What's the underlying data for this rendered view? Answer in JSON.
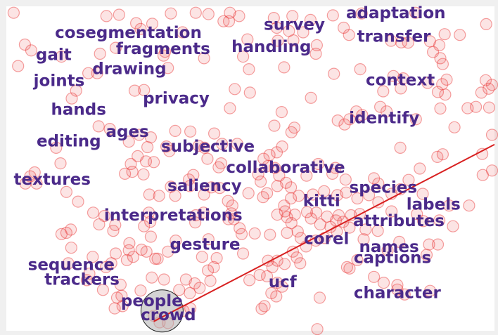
{
  "chart_data": {
    "type": "scatter",
    "title": "",
    "xlabel": "",
    "ylabel": "",
    "grid": false,
    "legend": "none",
    "xlim": [
      0,
      100
    ],
    "ylim": [
      0,
      100
    ],
    "colors": {
      "background": "#f0f0f0",
      "plot": "#ffffff",
      "points": "#e83030",
      "words": "#4b2a8a",
      "line": "#d82020",
      "highlight": "#b0b0b0"
    },
    "words": [
      {
        "text": "adaptation",
        "x": 79.8,
        "y": 97.8
      },
      {
        "text": "survey",
        "x": 59.0,
        "y": 94.3
      },
      {
        "text": "cosegmentation",
        "x": 25.0,
        "y": 91.8
      },
      {
        "text": "transfer",
        "x": 79.4,
        "y": 90.6
      },
      {
        "text": "fragments",
        "x": 32.1,
        "y": 86.8
      },
      {
        "text": "handling",
        "x": 54.3,
        "y": 87.4
      },
      {
        "text": "gait",
        "x": 9.7,
        "y": 85.0
      },
      {
        "text": "drawing",
        "x": 25.2,
        "y": 80.6
      },
      {
        "text": "joints",
        "x": 10.8,
        "y": 77.0
      },
      {
        "text": "context",
        "x": 80.7,
        "y": 77.2
      },
      {
        "text": "privacy",
        "x": 34.8,
        "y": 71.5
      },
      {
        "text": "hands",
        "x": 14.8,
        "y": 68.1
      },
      {
        "text": "identify",
        "x": 77.4,
        "y": 65.5
      },
      {
        "text": "ages",
        "x": 24.8,
        "y": 61.3
      },
      {
        "text": "editing",
        "x": 12.8,
        "y": 58.3
      },
      {
        "text": "subjective",
        "x": 41.3,
        "y": 56.7
      },
      {
        "text": "collaborative",
        "x": 57.2,
        "y": 50.2
      },
      {
        "text": "textures",
        "x": 9.4,
        "y": 46.5
      },
      {
        "text": "saliency",
        "x": 40.6,
        "y": 44.6
      },
      {
        "text": "species",
        "x": 77.2,
        "y": 44.1
      },
      {
        "text": "kitti",
        "x": 64.6,
        "y": 39.9
      },
      {
        "text": "labels",
        "x": 87.5,
        "y": 38.8
      },
      {
        "text": "interpretations",
        "x": 34.2,
        "y": 35.5
      },
      {
        "text": "attributes",
        "x": 80.4,
        "y": 33.8
      },
      {
        "text": "gesture",
        "x": 40.7,
        "y": 26.5
      },
      {
        "text": "corel",
        "x": 65.6,
        "y": 28.3
      },
      {
        "text": "names",
        "x": 78.4,
        "y": 25.8
      },
      {
        "text": "captions",
        "x": 79.1,
        "y": 22.4
      },
      {
        "text": "sequence",
        "x": 13.3,
        "y": 20.2
      },
      {
        "text": "trackers",
        "x": 15.5,
        "y": 15.7
      },
      {
        "text": "ucf",
        "x": 56.6,
        "y": 14.9
      },
      {
        "text": "character",
        "x": 80.1,
        "y": 11.6
      },
      {
        "text": "people",
        "x": 29.8,
        "y": 9.1
      },
      {
        "text": "crowd",
        "x": 33.2,
        "y": 4.8
      }
    ],
    "line": {
      "x": [
        30.2,
        100
      ],
      "y": [
        2.9,
        57.4
      ]
    },
    "highlight_circle": {
      "x": 31.9,
      "y": 6.1
    },
    "points": [
      [
        1.5,
        98
      ],
      [
        20.5,
        97
      ],
      [
        23.1,
        97.4
      ],
      [
        33.7,
        97.8
      ],
      [
        38.8,
        98
      ],
      [
        41.4,
        97.6
      ],
      [
        45.8,
        98
      ],
      [
        47.7,
        97
      ],
      [
        58.6,
        97
      ],
      [
        66.9,
        97.2
      ],
      [
        72.8,
        97.8
      ],
      [
        83.8,
        98
      ],
      [
        98.3,
        94.5
      ],
      [
        26.6,
        94.8
      ],
      [
        27.5,
        93
      ],
      [
        29.9,
        94.6
      ],
      [
        36.1,
        92
      ],
      [
        44.5,
        95.4
      ],
      [
        45.6,
        95.4
      ],
      [
        54.8,
        96.4
      ],
      [
        55.4,
        93.4
      ],
      [
        57.9,
        92.4
      ],
      [
        60.8,
        92
      ],
      [
        62.3,
        95.8
      ],
      [
        69.1,
        93.4
      ],
      [
        70.2,
        91.2
      ],
      [
        3.8,
        88.2
      ],
      [
        22.4,
        87.2
      ],
      [
        32.5,
        86
      ],
      [
        49.4,
        89.8
      ],
      [
        55.6,
        89.4
      ],
      [
        58.8,
        89.5
      ],
      [
        63.6,
        88
      ],
      [
        78.8,
        89.4
      ],
      [
        80.9,
        88.9
      ],
      [
        86.8,
        89.2
      ],
      [
        88.7,
        88
      ],
      [
        89.8,
        91.4
      ],
      [
        92.9,
        91.2
      ],
      [
        5.1,
        86.4
      ],
      [
        11.3,
        84.5
      ],
      [
        19.2,
        85.4
      ],
      [
        32.2,
        84.8
      ],
      [
        40.5,
        84
      ],
      [
        48.5,
        84.5
      ],
      [
        63.4,
        85.4
      ],
      [
        82.3,
        88.8
      ],
      [
        87.4,
        85.9
      ],
      [
        88.9,
        84
      ],
      [
        89.4,
        82.2
      ],
      [
        2.4,
        81.6
      ],
      [
        16.8,
        79.4
      ],
      [
        18.6,
        79.4
      ],
      [
        33.1,
        81
      ],
      [
        49.7,
        80.6
      ],
      [
        56.9,
        81.2
      ],
      [
        67.1,
        79.2
      ],
      [
        72.5,
        80.6
      ],
      [
        79.3,
        78.5
      ],
      [
        81.3,
        77.8
      ],
      [
        86.3,
        76.4
      ],
      [
        89.3,
        76
      ],
      [
        90.2,
        77.4
      ],
      [
        98.2,
        77.2
      ],
      [
        99.5,
        75.8
      ],
      [
        14.3,
        74
      ],
      [
        26.3,
        74
      ],
      [
        28.2,
        74.2
      ],
      [
        46.8,
        74.5
      ],
      [
        49.9,
        73.4
      ],
      [
        62.4,
        71.8
      ],
      [
        77.2,
        73.8
      ],
      [
        80.8,
        74.7
      ],
      [
        88.4,
        73.6
      ],
      [
        89.9,
        72.8
      ],
      [
        97.3,
        73.4
      ],
      [
        98.8,
        74.6
      ],
      [
        13.4,
        71.6
      ],
      [
        45.8,
        68.6
      ],
      [
        56.4,
        67.4
      ],
      [
        70.3,
        65.2
      ],
      [
        71.7,
        67.6
      ],
      [
        72.9,
        66.5
      ],
      [
        76.6,
        69
      ],
      [
        77.9,
        67.6
      ],
      [
        83.9,
        65.2
      ],
      [
        88.9,
        68.5
      ],
      [
        94.5,
        68.6
      ],
      [
        96.2,
        69
      ],
      [
        98.9,
        68.8
      ],
      [
        18.9,
        63
      ],
      [
        21.2,
        62.2
      ],
      [
        27.2,
        60.4
      ],
      [
        29.6,
        59.6
      ],
      [
        34.6,
        61.6
      ],
      [
        37.7,
        61.4
      ],
      [
        42.6,
        60.8
      ],
      [
        54.9,
        63.2
      ],
      [
        58.4,
        61.2
      ],
      [
        59,
        62.6
      ],
      [
        67.9,
        64.8
      ],
      [
        69.3,
        63.6
      ],
      [
        91.8,
        62.7
      ],
      [
        10.2,
        56.4
      ],
      [
        25.1,
        58.3
      ],
      [
        28.9,
        56.6
      ],
      [
        32.8,
        56.8
      ],
      [
        33.4,
        55.4
      ],
      [
        39.4,
        57
      ],
      [
        40.6,
        56.4
      ],
      [
        44.2,
        57.6
      ],
      [
        47.3,
        57.6
      ],
      [
        53.9,
        54.2
      ],
      [
        55.4,
        55
      ],
      [
        56.5,
        56.8
      ],
      [
        80.7,
        56.4
      ],
      [
        88.3,
        53.6
      ],
      [
        89.4,
        54.4
      ],
      [
        97.5,
        54.5
      ],
      [
        99.5,
        60.4
      ],
      [
        11.1,
        51.6
      ],
      [
        25.5,
        51.4
      ],
      [
        26.9,
        53.8
      ],
      [
        28.6,
        52.2
      ],
      [
        30.2,
        52
      ],
      [
        41.2,
        53
      ],
      [
        43.5,
        50.4
      ],
      [
        44,
        51.6
      ],
      [
        52.7,
        53
      ],
      [
        53.6,
        50.8
      ],
      [
        55,
        50.2
      ],
      [
        63.9,
        51.4
      ],
      [
        67.4,
        50.2
      ],
      [
        84.7,
        50
      ],
      [
        4.9,
        47.6
      ],
      [
        5.8,
        48.8
      ],
      [
        24.3,
        48.4
      ],
      [
        25.8,
        49
      ],
      [
        28.1,
        48.2
      ],
      [
        37.4,
        46.6
      ],
      [
        38.3,
        48
      ],
      [
        51.6,
        48.2
      ],
      [
        52.1,
        46
      ],
      [
        55.9,
        47.8
      ],
      [
        57.3,
        45.6
      ],
      [
        61.5,
        47.8
      ],
      [
        66.8,
        48.4
      ],
      [
        69.5,
        46.6
      ],
      [
        75.3,
        47
      ],
      [
        76.2,
        45.4
      ],
      [
        82.4,
        46.5
      ],
      [
        97.6,
        48
      ],
      [
        99.5,
        49.4
      ],
      [
        3.9,
        45.4
      ],
      [
        6.2,
        45.4
      ],
      [
        33.7,
        44.4
      ],
      [
        37.6,
        44.6
      ],
      [
        42,
        44.2
      ],
      [
        43.7,
        44
      ],
      [
        49.6,
        42.4
      ],
      [
        53.4,
        42.4
      ],
      [
        55.5,
        44.6
      ],
      [
        58.3,
        44.2
      ],
      [
        65.1,
        43
      ],
      [
        69.6,
        42.6
      ],
      [
        78.9,
        42.2
      ],
      [
        80.7,
        43.6
      ],
      [
        85.3,
        42.2
      ],
      [
        12.3,
        42.8
      ],
      [
        14.7,
        39.8
      ],
      [
        29.3,
        42
      ],
      [
        31.3,
        41.6
      ],
      [
        34.6,
        41.6
      ],
      [
        40.5,
        42
      ],
      [
        45.4,
        40
      ],
      [
        46.3,
        38.6
      ],
      [
        52.6,
        41.2
      ],
      [
        56.9,
        38.6
      ],
      [
        58.3,
        40.8
      ],
      [
        59.9,
        41.6
      ],
      [
        62.8,
        42
      ],
      [
        67.8,
        41.8
      ],
      [
        71.9,
        40.8
      ],
      [
        74.3,
        41.8
      ],
      [
        76.2,
        39.6
      ],
      [
        90.7,
        38.6
      ],
      [
        94.8,
        38.6
      ],
      [
        17.8,
        36.4
      ],
      [
        20.1,
        35.4
      ],
      [
        29.2,
        36.4
      ],
      [
        38.8,
        35.6
      ],
      [
        40.4,
        36.4
      ],
      [
        46.1,
        36.2
      ],
      [
        46.6,
        34.4
      ],
      [
        55.5,
        35.8
      ],
      [
        57.1,
        36.8
      ],
      [
        57.5,
        35
      ],
      [
        59.1,
        35.8
      ],
      [
        61.6,
        36.6
      ],
      [
        62.4,
        34.6
      ],
      [
        63.5,
        36.4
      ],
      [
        65.7,
        35.2
      ],
      [
        67.5,
        34
      ],
      [
        68.1,
        35.6
      ],
      [
        69,
        33.6
      ],
      [
        70.6,
        35.6
      ],
      [
        72.4,
        36
      ],
      [
        78.9,
        36.8
      ],
      [
        84.1,
        36
      ],
      [
        85.4,
        33.8
      ],
      [
        88.7,
        34
      ],
      [
        13.2,
        31.2
      ],
      [
        19,
        32.8
      ],
      [
        22.3,
        32.6
      ],
      [
        29.5,
        33.6
      ],
      [
        38.7,
        33.4
      ],
      [
        45.5,
        34.4
      ],
      [
        47.8,
        31.6
      ],
      [
        58.4,
        33.2
      ],
      [
        59.7,
        30.6
      ],
      [
        64.3,
        32.8
      ],
      [
        66.4,
        32
      ],
      [
        67.7,
        30.6
      ],
      [
        70.3,
        31.8
      ],
      [
        73.6,
        31.2
      ],
      [
        76.1,
        30.8
      ],
      [
        91.5,
        32.2
      ],
      [
        11.3,
        29.8
      ],
      [
        12.3,
        30.2
      ],
      [
        21.9,
        30.8
      ],
      [
        25.2,
        27
      ],
      [
        28.2,
        32.2
      ],
      [
        29.6,
        29
      ],
      [
        34.7,
        27.8
      ],
      [
        41.4,
        28.2
      ],
      [
        48.2,
        29.8
      ],
      [
        50.9,
        30
      ],
      [
        54,
        29.6
      ],
      [
        57.5,
        30.2
      ],
      [
        60.3,
        28.6
      ],
      [
        61.4,
        26
      ],
      [
        63.4,
        27.8
      ],
      [
        65.2,
        28.6
      ],
      [
        73.2,
        28.2
      ],
      [
        80.5,
        27.4
      ],
      [
        86.6,
        26.6
      ],
      [
        88.4,
        26.6
      ],
      [
        13.3,
        25.6
      ],
      [
        22.4,
        23.8
      ],
      [
        25.1,
        24.8
      ],
      [
        26,
        22.8
      ],
      [
        27.7,
        25
      ],
      [
        28.7,
        24.4
      ],
      [
        31,
        22.2
      ],
      [
        33.1,
        24.4
      ],
      [
        40.1,
        22.8
      ],
      [
        43.1,
        22.4
      ],
      [
        48.5,
        23.8
      ],
      [
        53.6,
        21.6
      ],
      [
        58.7,
        24.4
      ],
      [
        59.5,
        22.6
      ],
      [
        60.2,
        20.8
      ],
      [
        69.8,
        19.6
      ],
      [
        71.9,
        21.8
      ],
      [
        78.1,
        24.8
      ],
      [
        86.1,
        23.4
      ],
      [
        12.7,
        20.8
      ],
      [
        17.7,
        22.8
      ],
      [
        20.4,
        19.6
      ],
      [
        21.5,
        20.8
      ],
      [
        24.7,
        21.8
      ],
      [
        30.5,
        22.2
      ],
      [
        41.3,
        18.6
      ],
      [
        42.5,
        19.6
      ],
      [
        53.4,
        16.8
      ],
      [
        54.5,
        19.6
      ],
      [
        55.5,
        21.6
      ],
      [
        57,
        20.6
      ],
      [
        70.3,
        19.2
      ],
      [
        75.3,
        16.6
      ],
      [
        77.3,
        14.8
      ],
      [
        80.1,
        14.1
      ],
      [
        86.8,
        12.3
      ],
      [
        16.5,
        15.6
      ],
      [
        17,
        17.6
      ],
      [
        23.4,
        14.2
      ],
      [
        29.8,
        16.4
      ],
      [
        32.3,
        15.8
      ],
      [
        36.8,
        15.8
      ],
      [
        38.6,
        14.6
      ],
      [
        39.6,
        13.2
      ],
      [
        41.8,
        15.4
      ],
      [
        49.8,
        15.6
      ],
      [
        51.9,
        17.2
      ],
      [
        55.5,
        14.8
      ],
      [
        56.5,
        13.6
      ],
      [
        19.8,
        12.6
      ],
      [
        22.7,
        10.2
      ],
      [
        23.6,
        10.8
      ],
      [
        27.5,
        12.4
      ],
      [
        35.4,
        12.6
      ],
      [
        37.6,
        11.6
      ],
      [
        54.3,
        11.6
      ],
      [
        55.3,
        10.6
      ],
      [
        64.2,
        10.2
      ],
      [
        80.1,
        12.7
      ],
      [
        81.6,
        11.2
      ],
      [
        22.2,
        6.9
      ],
      [
        23.8,
        7.6
      ],
      [
        30.2,
        4.6
      ],
      [
        31.4,
        2.6
      ],
      [
        33.1,
        2.4
      ],
      [
        36.3,
        6.2
      ],
      [
        37.7,
        6.9
      ],
      [
        52.3,
        6.8
      ],
      [
        52.9,
        7.6
      ],
      [
        63.7,
        0.5
      ]
    ]
  }
}
